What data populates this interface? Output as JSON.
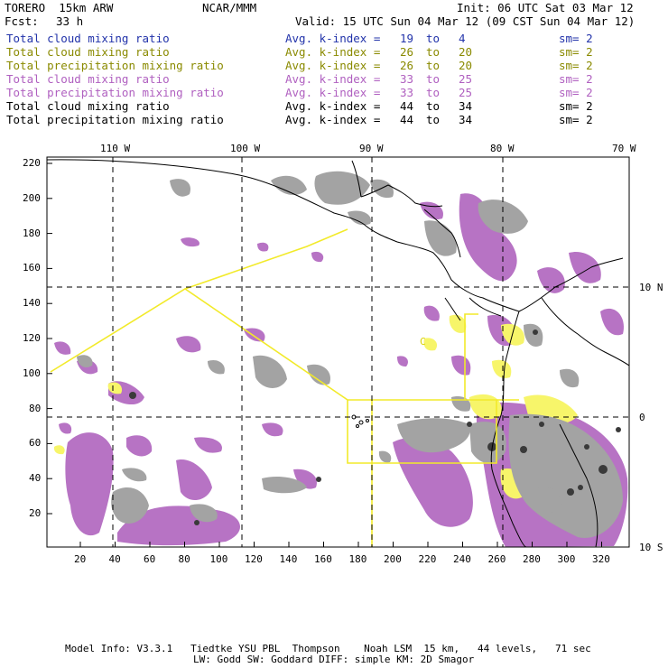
{
  "header": {
    "model": "TORERO  15km ARW",
    "org": "NCAR/MMM",
    "init": "Init: 06 UTC Sat 03 Mar 12",
    "fcst_label": "Fcst:",
    "fcst_value": "33 h",
    "valid": "Valid: 15 UTC Sun 04 Mar 12 (09 CST Sun 04 Mar 12)"
  },
  "fields": [
    {
      "name": "Total cloud mixing ratio",
      "avg": "Avg. k-index =",
      "k1": "19",
      "to": "to",
      "k2": "4",
      "sm": "sm= 2",
      "color": "#2233aa"
    },
    {
      "name": "Total cloud mixing ratio",
      "avg": "Avg. k-index =",
      "k1": "26",
      "to": "to",
      "k2": "20",
      "sm": "sm= 2",
      "color": "#8a8a00"
    },
    {
      "name": "Total precipitation mixing ratio",
      "avg": "Avg. k-index =",
      "k1": "26",
      "to": "to",
      "k2": "20",
      "sm": "sm= 2",
      "color": "#8a8a00"
    },
    {
      "name": "Total cloud mixing ratio",
      "avg": "Avg. k-index =",
      "k1": "33",
      "to": "to",
      "k2": "25",
      "sm": "sm= 2",
      "color": "#b060c0"
    },
    {
      "name": "Total precipitation mixing ratio",
      "avg": "Avg. k-index =",
      "k1": "33",
      "to": "to",
      "k2": "25",
      "sm": "sm= 2",
      "color": "#b060c0"
    },
    {
      "name": "Total cloud mixing ratio",
      "avg": "Avg. k-index =",
      "k1": "44",
      "to": "to",
      "k2": "34",
      "sm": "sm= 2",
      "color": "#000000"
    },
    {
      "name": "Total precipitation mixing ratio",
      "avg": "Avg. k-index =",
      "k1": "44",
      "to": "to",
      "k2": "34",
      "sm": "sm= 2",
      "color": "#000000"
    }
  ],
  "axes": {
    "lon_labels": [
      "110 W",
      "100 W",
      "90 W",
      "80 W",
      "70 W"
    ],
    "lat_labels": [
      "10 N",
      "0",
      "10 S"
    ],
    "x_ticks": [
      "20",
      "40",
      "60",
      "80",
      "100",
      "120",
      "140",
      "160",
      "180",
      "200",
      "220",
      "240",
      "260",
      "280",
      "300",
      "320"
    ],
    "y_ticks": [
      "220",
      "200",
      "180",
      "160",
      "140",
      "120",
      "100",
      "80",
      "60",
      "40",
      "20"
    ]
  },
  "annotation": "C",
  "footer": {
    "line1": "Model Info: V3.3.1   Tiedtke YSU PBL  Thompson    Noah LSM  15 km,   44 levels,   71 sec",
    "line2": "LW: Godd SW: Goddard DIFF: simple KM: 2D Smagor"
  },
  "colors": {
    "purple": "#b773c4",
    "gray": "#a3a3a3",
    "dark": "#3a3a3a",
    "yellow": "#f7f56a",
    "line_yellow": "#f2ea2a"
  }
}
